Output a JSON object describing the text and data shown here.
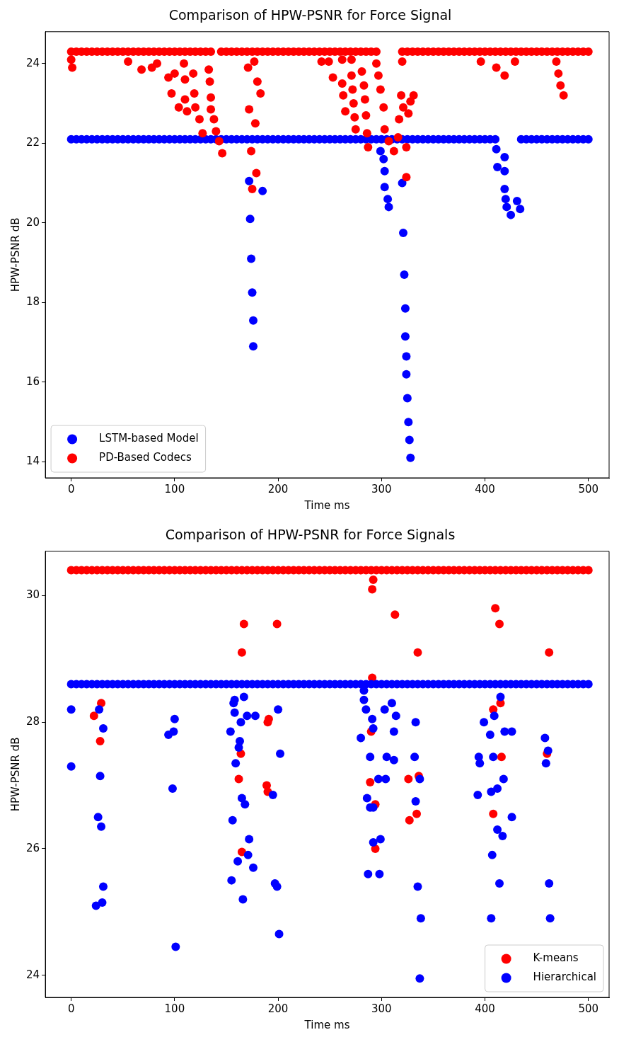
{
  "chart_data": [
    {
      "type": "scatter",
      "title": "Comparison of HPW-PSNR for Force Signal",
      "xlabel": "Time ms",
      "ylabel": "HPW-PSNR dB",
      "marker": "circle",
      "legend": "bottom left",
      "xlim": [
        -25,
        520
      ],
      "ylim": [
        13.6,
        24.8
      ],
      "xticks": [
        0,
        100,
        200,
        300,
        400,
        500
      ],
      "yticks": [
        14,
        16,
        18,
        20,
        22,
        24
      ],
      "series": [
        {
          "name": "LSTM-based Model",
          "color": "#0000ff",
          "x": [
            0,
            5,
            10,
            15,
            20,
            25,
            30,
            35,
            40,
            45,
            50,
            55,
            60,
            65,
            70,
            75,
            80,
            85,
            90,
            95,
            100,
            105,
            110,
            115,
            120,
            125,
            130,
            135,
            140,
            145,
            150,
            155,
            160,
            165,
            170,
            175,
            180,
            185,
            190,
            195,
            200,
            205,
            210,
            215,
            220,
            225,
            230,
            235,
            240,
            245,
            250,
            255,
            260,
            265,
            270,
            275,
            280,
            285,
            290,
            295,
            300,
            305,
            310,
            315,
            320,
            325,
            330,
            335,
            340,
            345,
            350,
            355,
            360,
            365,
            370,
            375,
            380,
            385,
            390,
            395,
            400,
            405,
            410,
            435,
            440,
            445,
            450,
            455,
            460,
            465,
            470,
            475,
            480,
            485,
            490,
            495,
            500,
            172,
            185,
            173,
            174,
            175,
            176,
            176,
            299,
            302,
            303,
            303,
            306,
            307,
            320,
            321,
            322,
            323,
            323,
            324,
            324,
            325,
            326,
            327,
            328,
            411,
            419,
            412,
            419,
            419,
            420,
            421,
            425,
            431,
            434
          ],
          "values": [
            22.1,
            22.1,
            22.1,
            22.1,
            22.1,
            22.1,
            22.1,
            22.1,
            22.1,
            22.1,
            22.1,
            22.1,
            22.1,
            22.1,
            22.1,
            22.1,
            22.1,
            22.1,
            22.1,
            22.1,
            22.1,
            22.1,
            22.1,
            22.1,
            22.1,
            22.1,
            22.1,
            22.1,
            22.1,
            22.1,
            22.1,
            22.1,
            22.1,
            22.1,
            22.1,
            22.1,
            22.1,
            22.1,
            22.1,
            22.1,
            22.1,
            22.1,
            22.1,
            22.1,
            22.1,
            22.1,
            22.1,
            22.1,
            22.1,
            22.1,
            22.1,
            22.1,
            22.1,
            22.1,
            22.1,
            22.1,
            22.1,
            22.1,
            22.1,
            22.1,
            22.1,
            22.1,
            22.1,
            22.1,
            22.1,
            22.1,
            22.1,
            22.1,
            22.1,
            22.1,
            22.1,
            22.1,
            22.1,
            22.1,
            22.1,
            22.1,
            22.1,
            22.1,
            22.1,
            22.1,
            22.1,
            22.1,
            22.1,
            22.1,
            22.1,
            22.1,
            22.1,
            22.1,
            22.1,
            22.1,
            22.1,
            22.1,
            22.1,
            22.1,
            22.1,
            22.1,
            22.1,
            21.05,
            20.8,
            20.1,
            19.1,
            18.25,
            17.55,
            16.9,
            21.8,
            21.6,
            21.3,
            20.9,
            20.6,
            20.4,
            21.0,
            19.75,
            18.7,
            17.85,
            17.15,
            16.65,
            16.2,
            15.6,
            15.0,
            14.55,
            14.1,
            21.85,
            21.65,
            21.4,
            21.3,
            20.85,
            20.6,
            20.4,
            20.2,
            20.55,
            20.35
          ]
        },
        {
          "name": "PD-Based Codecs",
          "color": "#ff0000",
          "x": [
            0,
            5,
            10,
            15,
            20,
            25,
            30,
            35,
            40,
            45,
            50,
            55,
            60,
            65,
            70,
            75,
            80,
            85,
            90,
            95,
            100,
            105,
            110,
            115,
            120,
            125,
            130,
            135,
            145,
            150,
            155,
            160,
            165,
            170,
            175,
            180,
            185,
            190,
            195,
            200,
            205,
            210,
            215,
            220,
            225,
            230,
            235,
            240,
            245,
            250,
            255,
            260,
            265,
            270,
            275,
            280,
            285,
            290,
            295,
            320,
            325,
            330,
            335,
            340,
            345,
            350,
            355,
            360,
            365,
            370,
            375,
            380,
            385,
            390,
            395,
            400,
            405,
            410,
            415,
            420,
            425,
            430,
            435,
            440,
            445,
            450,
            455,
            460,
            465,
            470,
            475,
            480,
            485,
            490,
            495,
            500,
            0,
            1,
            55,
            68,
            78,
            83,
            94,
            100,
            110,
            118,
            109,
            97,
            104,
            112,
            119,
            110,
            120,
            124,
            127,
            133,
            134,
            135,
            135,
            138,
            140,
            143,
            146,
            171,
            177,
            180,
            183,
            172,
            178,
            174,
            179,
            175,
            242,
            249,
            262,
            271,
            253,
            262,
            271,
            281,
            283,
            272,
            263,
            284,
            273,
            265,
            285,
            274,
            275,
            286,
            287,
            295,
            297,
            299,
            302,
            303,
            307,
            312,
            316,
            324,
            317,
            321,
            326,
            319,
            331,
            328,
            320,
            324,
            396,
            411,
            419,
            429,
            469,
            471,
            473,
            476
          ],
          "values": [
            24.3,
            24.3,
            24.3,
            24.3,
            24.3,
            24.3,
            24.3,
            24.3,
            24.3,
            24.3,
            24.3,
            24.3,
            24.3,
            24.3,
            24.3,
            24.3,
            24.3,
            24.3,
            24.3,
            24.3,
            24.3,
            24.3,
            24.3,
            24.3,
            24.3,
            24.3,
            24.3,
            24.3,
            24.3,
            24.3,
            24.3,
            24.3,
            24.3,
            24.3,
            24.3,
            24.3,
            24.3,
            24.3,
            24.3,
            24.3,
            24.3,
            24.3,
            24.3,
            24.3,
            24.3,
            24.3,
            24.3,
            24.3,
            24.3,
            24.3,
            24.3,
            24.3,
            24.3,
            24.3,
            24.3,
            24.3,
            24.3,
            24.3,
            24.3,
            24.3,
            24.3,
            24.3,
            24.3,
            24.3,
            24.3,
            24.3,
            24.3,
            24.3,
            24.3,
            24.3,
            24.3,
            24.3,
            24.3,
            24.3,
            24.3,
            24.3,
            24.3,
            24.3,
            24.3,
            24.3,
            24.3,
            24.3,
            24.3,
            24.3,
            24.3,
            24.3,
            24.3,
            24.3,
            24.3,
            24.3,
            24.3,
            24.3,
            24.3,
            24.3,
            24.3,
            24.3,
            24.1,
            23.9,
            24.05,
            23.85,
            23.9,
            24.0,
            23.65,
            23.75,
            23.6,
            23.75,
            24.0,
            23.25,
            22.9,
            22.8,
            23.25,
            23.1,
            22.9,
            22.6,
            22.25,
            23.85,
            23.55,
            23.15,
            22.85,
            22.6,
            22.3,
            22.05,
            21.75,
            23.9,
            24.05,
            23.55,
            23.25,
            22.85,
            22.5,
            21.8,
            21.25,
            20.85,
            24.05,
            24.05,
            24.1,
            24.1,
            23.65,
            23.5,
            23.7,
            23.8,
            23.45,
            23.35,
            23.2,
            23.1,
            23.0,
            22.8,
            22.7,
            22.65,
            22.35,
            22.25,
            21.9,
            24.0,
            23.7,
            23.35,
            22.9,
            22.35,
            22.05,
            21.8,
            22.15,
            21.9,
            22.6,
            22.9,
            22.75,
            23.2,
            23.2,
            23.05,
            24.05,
            21.15,
            24.05,
            23.9,
            23.7,
            24.05,
            24.05,
            23.75,
            23.45,
            23.2
          ]
        }
      ]
    },
    {
      "type": "scatter",
      "title": "Comparison of HPW-PSNR for Force Signals",
      "xlabel": "Time ms",
      "ylabel": "HPW-PSNR dB",
      "marker": "circle",
      "legend": "bottom right",
      "xlim": [
        -25,
        520
      ],
      "ylim": [
        23.65,
        30.7
      ],
      "xticks": [
        0,
        100,
        200,
        300,
        400,
        500
      ],
      "yticks": [
        24,
        26,
        28,
        30
      ],
      "series": [
        {
          "name": "K-means",
          "color": "#ff0000",
          "x": [
            0,
            5,
            10,
            15,
            20,
            25,
            30,
            35,
            40,
            45,
            50,
            55,
            60,
            65,
            70,
            75,
            80,
            85,
            90,
            95,
            100,
            105,
            110,
            115,
            120,
            125,
            130,
            135,
            140,
            145,
            150,
            155,
            160,
            165,
            170,
            175,
            180,
            185,
            190,
            195,
            200,
            205,
            210,
            215,
            220,
            225,
            230,
            235,
            240,
            245,
            250,
            255,
            260,
            265,
            270,
            275,
            280,
            285,
            290,
            295,
            300,
            305,
            310,
            315,
            320,
            325,
            330,
            335,
            340,
            345,
            350,
            355,
            360,
            365,
            370,
            375,
            380,
            385,
            390,
            395,
            400,
            405,
            410,
            415,
            420,
            425,
            430,
            435,
            440,
            445,
            450,
            455,
            460,
            465,
            470,
            475,
            480,
            485,
            490,
            495,
            500,
            292,
            291,
            313,
            410,
            414,
            335,
            462,
            291,
            415,
            408,
            290,
            416,
            460,
            289,
            326,
            336,
            294,
            408,
            334,
            327,
            294,
            167,
            199,
            165,
            29,
            22,
            28,
            191,
            190,
            164,
            162,
            189,
            190,
            165
          ],
          "values": [
            30.4,
            30.4,
            30.4,
            30.4,
            30.4,
            30.4,
            30.4,
            30.4,
            30.4,
            30.4,
            30.4,
            30.4,
            30.4,
            30.4,
            30.4,
            30.4,
            30.4,
            30.4,
            30.4,
            30.4,
            30.4,
            30.4,
            30.4,
            30.4,
            30.4,
            30.4,
            30.4,
            30.4,
            30.4,
            30.4,
            30.4,
            30.4,
            30.4,
            30.4,
            30.4,
            30.4,
            30.4,
            30.4,
            30.4,
            30.4,
            30.4,
            30.4,
            30.4,
            30.4,
            30.4,
            30.4,
            30.4,
            30.4,
            30.4,
            30.4,
            30.4,
            30.4,
            30.4,
            30.4,
            30.4,
            30.4,
            30.4,
            30.4,
            30.4,
            30.4,
            30.4,
            30.4,
            30.4,
            30.4,
            30.4,
            30.4,
            30.4,
            30.4,
            30.4,
            30.4,
            30.4,
            30.4,
            30.4,
            30.4,
            30.4,
            30.4,
            30.4,
            30.4,
            30.4,
            30.4,
            30.4,
            30.4,
            30.4,
            30.4,
            30.4,
            30.4,
            30.4,
            30.4,
            30.4,
            30.4,
            30.4,
            30.4,
            30.4,
            30.4,
            30.4,
            30.4,
            30.4,
            30.4,
            30.4,
            30.4,
            30.4,
            30.25,
            30.1,
            29.7,
            29.8,
            29.55,
            29.1,
            29.1,
            28.7,
            28.3,
            28.2,
            27.85,
            27.45,
            27.5,
            27.05,
            27.1,
            27.15,
            26.7,
            26.55,
            26.55,
            26.45,
            26.0,
            29.55,
            29.55,
            29.1,
            28.3,
            28.1,
            27.7,
            28.05,
            28.0,
            27.5,
            27.1,
            27.0,
            26.9,
            25.95
          ]
        },
        {
          "name": "Hierarchical",
          "color": "#0000ff",
          "x": [
            0,
            5,
            10,
            15,
            20,
            25,
            30,
            35,
            40,
            45,
            50,
            55,
            60,
            65,
            70,
            75,
            80,
            85,
            90,
            95,
            100,
            105,
            110,
            115,
            120,
            125,
            130,
            135,
            140,
            145,
            150,
            155,
            160,
            165,
            170,
            175,
            180,
            185,
            190,
            195,
            200,
            205,
            210,
            215,
            220,
            225,
            230,
            235,
            240,
            245,
            250,
            255,
            260,
            265,
            270,
            275,
            280,
            285,
            290,
            295,
            300,
            305,
            310,
            315,
            320,
            325,
            330,
            335,
            340,
            345,
            350,
            355,
            360,
            365,
            370,
            375,
            380,
            385,
            390,
            395,
            400,
            405,
            410,
            415,
            420,
            425,
            430,
            435,
            440,
            445,
            450,
            455,
            460,
            465,
            470,
            475,
            480,
            485,
            490,
            495,
            500,
            283,
            283,
            285,
            291,
            292,
            280,
            289,
            305,
            312,
            297,
            304,
            286,
            289,
            292,
            299,
            292,
            287,
            298,
            310,
            303,
            314,
            312,
            333,
            332,
            337,
            333,
            335,
            338,
            337,
            415,
            409,
            399,
            405,
            419,
            426,
            394,
            395,
            408,
            418,
            412,
            406,
            393,
            426,
            412,
            417,
            407,
            414,
            406,
            458,
            461,
            459,
            462,
            463,
            0,
            0,
            27,
            31,
            28,
            26,
            29,
            31,
            30,
            24,
            100,
            99,
            94,
            98,
            101,
            167,
            158,
            157,
            158,
            170,
            178,
            164,
            154,
            163,
            162,
            159,
            165,
            168,
            156,
            172,
            171,
            161,
            176,
            155,
            166,
            200,
            202,
            195,
            197,
            199,
            201
          ],
          "values": [
            28.6,
            28.6,
            28.6,
            28.6,
            28.6,
            28.6,
            28.6,
            28.6,
            28.6,
            28.6,
            28.6,
            28.6,
            28.6,
            28.6,
            28.6,
            28.6,
            28.6,
            28.6,
            28.6,
            28.6,
            28.6,
            28.6,
            28.6,
            28.6,
            28.6,
            28.6,
            28.6,
            28.6,
            28.6,
            28.6,
            28.6,
            28.6,
            28.6,
            28.6,
            28.6,
            28.6,
            28.6,
            28.6,
            28.6,
            28.6,
            28.6,
            28.6,
            28.6,
            28.6,
            28.6,
            28.6,
            28.6,
            28.6,
            28.6,
            28.6,
            28.6,
            28.6,
            28.6,
            28.6,
            28.6,
            28.6,
            28.6,
            28.6,
            28.6,
            28.6,
            28.6,
            28.6,
            28.6,
            28.6,
            28.6,
            28.6,
            28.6,
            28.6,
            28.6,
            28.6,
            28.6,
            28.6,
            28.6,
            28.6,
            28.6,
            28.6,
            28.6,
            28.6,
            28.6,
            28.6,
            28.6,
            28.6,
            28.6,
            28.6,
            28.6,
            28.6,
            28.6,
            28.6,
            28.6,
            28.6,
            28.6,
            28.6,
            28.6,
            28.6,
            28.6,
            28.6,
            28.6,
            28.6,
            28.6,
            28.6,
            28.6,
            28.5,
            28.35,
            28.2,
            28.05,
            27.9,
            27.75,
            27.45,
            27.45,
            27.4,
            27.1,
            27.1,
            26.8,
            26.65,
            26.65,
            26.15,
            26.1,
            25.6,
            25.6,
            28.3,
            28.2,
            28.1,
            27.85,
            28.0,
            27.45,
            27.1,
            26.75,
            25.4,
            24.9,
            23.95,
            28.4,
            28.1,
            28.0,
            27.8,
            27.85,
            27.85,
            27.45,
            27.35,
            27.45,
            27.1,
            26.95,
            26.9,
            26.85,
            26.5,
            26.3,
            26.2,
            25.9,
            25.45,
            24.9,
            27.75,
            27.55,
            27.35,
            25.45,
            24.9,
            28.2,
            27.3,
            28.2,
            27.9,
            27.15,
            26.5,
            26.35,
            25.4,
            25.15,
            25.1,
            28.05,
            27.85,
            27.8,
            26.95,
            24.45,
            28.4,
            28.35,
            28.3,
            28.15,
            28.1,
            28.1,
            28.0,
            27.85,
            27.7,
            27.6,
            27.35,
            26.8,
            26.7,
            26.45,
            26.15,
            25.9,
            25.8,
            25.7,
            25.5,
            25.2,
            28.2,
            27.5,
            26.85,
            25.45,
            25.4,
            24.65
          ]
        }
      ]
    }
  ]
}
